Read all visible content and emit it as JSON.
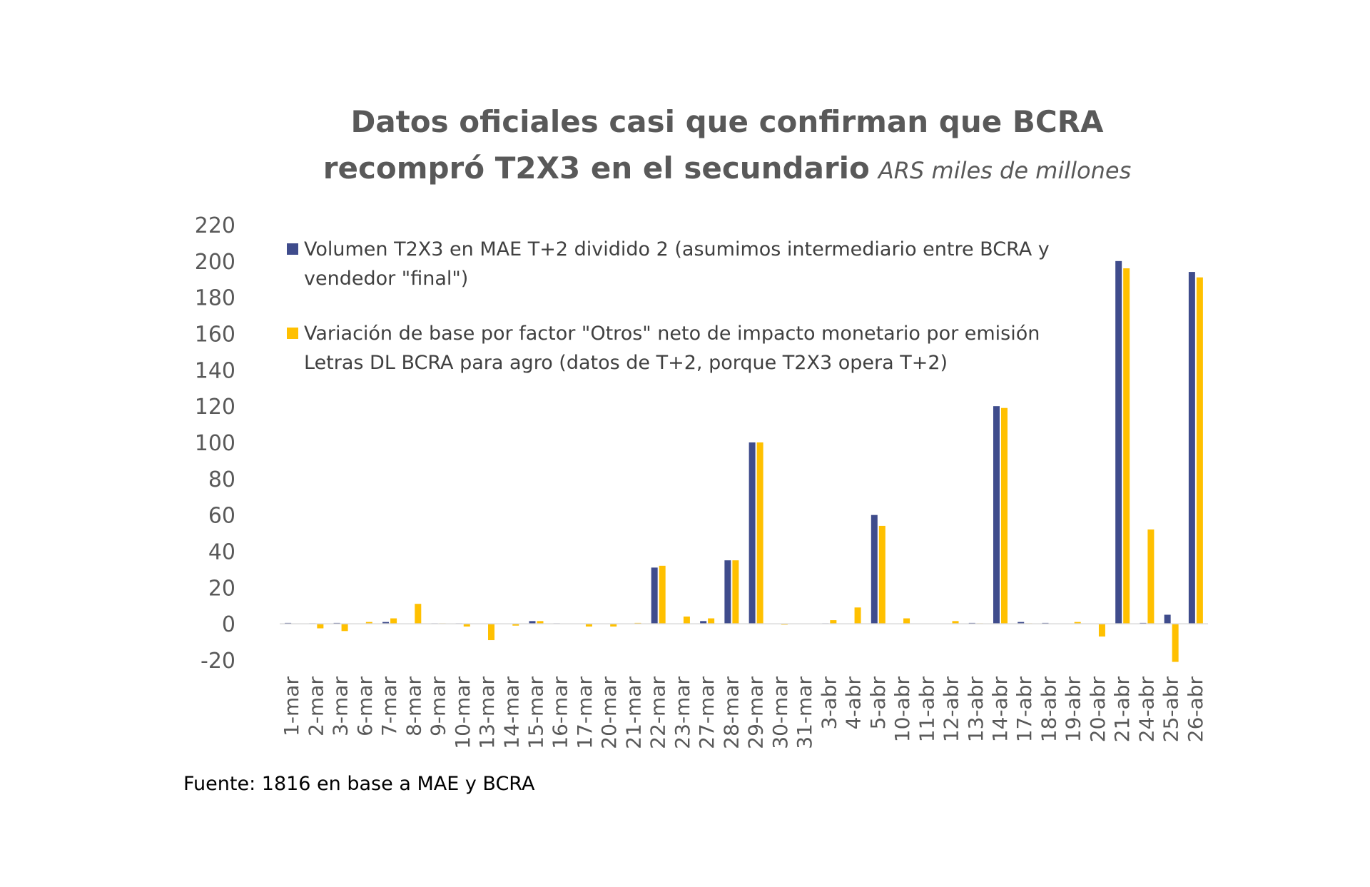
{
  "chart_data": {
    "type": "bar",
    "title_line1": "Datos oficiales casi que confirman que BCRA",
    "title_line2": "recompró T2X3 en el secundario",
    "subtitle": "ARS miles de millones",
    "source": "Fuente: 1816 en base a MAE y BCRA",
    "ylim": [
      -20,
      220
    ],
    "yticks": [
      -20,
      0,
      20,
      40,
      60,
      80,
      100,
      120,
      140,
      160,
      180,
      200,
      220
    ],
    "categories": [
      "1-mar",
      "2-mar",
      "3-mar",
      "6-mar",
      "7-mar",
      "8-mar",
      "9-mar",
      "10-mar",
      "13-mar",
      "14-mar",
      "15-mar",
      "16-mar",
      "17-mar",
      "20-mar",
      "21-mar",
      "22-mar",
      "23-mar",
      "27-mar",
      "28-mar",
      "29-mar",
      "30-mar",
      "31-mar",
      "3-abr",
      "4-abr",
      "5-abr",
      "10-abr",
      "11-abr",
      "12-abr",
      "13-abr",
      "14-abr",
      "17-abr",
      "18-abr",
      "19-abr",
      "20-abr",
      "21-abr",
      "24-abr",
      "25-abr",
      "26-abr"
    ],
    "series": [
      {
        "name_line1": "Volumen T2X3 en MAE T+2 dividido 2 (asumimos intermediario entre BCRA y",
        "name_line2": "vendedor \"final\")",
        "color": "#3F4C8C",
        "values": [
          0.5,
          0.3,
          0.5,
          0,
          1,
          0,
          0.3,
          0.3,
          0,
          0,
          1.5,
          0.3,
          0,
          0,
          0,
          31,
          0,
          1.5,
          35,
          100,
          0,
          0,
          0.3,
          0,
          60,
          0,
          0,
          0,
          0.5,
          120,
          1,
          0.5,
          0,
          0,
          200,
          0.5,
          5,
          194
        ]
      },
      {
        "name_line1": "Variación de base por factor \"Otros\" neto de impacto monetario por emisión",
        "name_line2": "Letras DL BCRA para agro (datos de T+2, porque T2X3 opera T+2)",
        "color": "#FFC000",
        "values": [
          0,
          -2.5,
          -4,
          1,
          3,
          11,
          0.3,
          -1.5,
          -9,
          -1,
          1.5,
          0,
          -1.5,
          -1.5,
          0.5,
          32,
          4,
          3,
          35,
          100,
          -0.5,
          0,
          2,
          9,
          54,
          3,
          0,
          1.5,
          0.3,
          119,
          0.3,
          0,
          1,
          -7,
          196,
          52,
          -21,
          191
        ]
      }
    ]
  }
}
